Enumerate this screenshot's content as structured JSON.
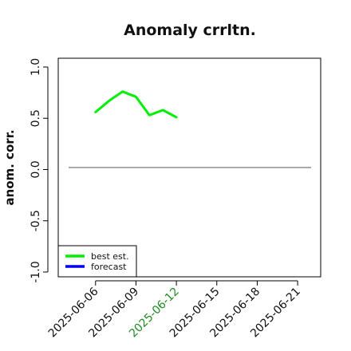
{
  "chart_data": {
    "type": "line",
    "title": "Anomaly crrltn.",
    "ylabel": "anom. corr.",
    "xlabel": "",
    "ylim": [
      -1.0,
      1.0
    ],
    "y_ticks": [
      -1.0,
      -0.5,
      0.0,
      0.5,
      1.0
    ],
    "y_tick_labels": [
      "-1.0",
      "-0.5",
      "0.0",
      "0.5",
      "1.0"
    ],
    "x_range": [
      "2025-06-04",
      "2025-06-22"
    ],
    "x_ticks": [
      "2025-06-06",
      "2025-06-09",
      "2025-06-12",
      "2025-06-15",
      "2025-06-18",
      "2025-06-21"
    ],
    "x_tick_labels": [
      "2025-06-06",
      "2025-06-09",
      "2025-06-12",
      "2025-06-15",
      "2025-06-18",
      "2025-06-21"
    ],
    "highlighted_x_tick": "2025-06-12",
    "highlight_color": "#228B22",
    "grid": false,
    "legend_position": "bottom-left",
    "reference_line": {
      "y": 0.0,
      "color": "#555555"
    },
    "series": [
      {
        "name": "best est.",
        "color": "#00EE00",
        "x": [
          "2025-06-06",
          "2025-06-07",
          "2025-06-08",
          "2025-06-09",
          "2025-06-10",
          "2025-06-11",
          "2025-06-12"
        ],
        "values": [
          0.56,
          0.67,
          0.76,
          0.71,
          0.53,
          0.58,
          0.51
        ]
      },
      {
        "name": "forecast",
        "color": "#0000EE",
        "x": [],
        "values": []
      }
    ]
  }
}
